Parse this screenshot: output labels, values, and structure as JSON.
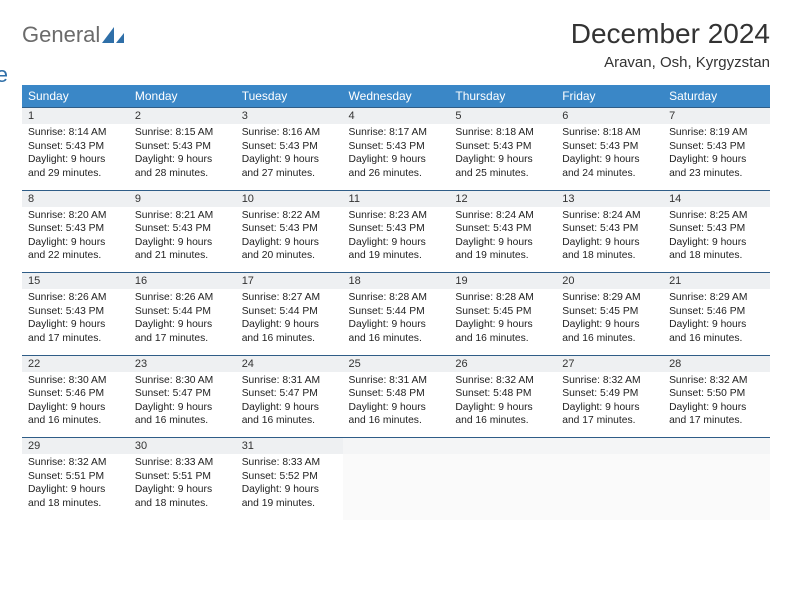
{
  "brand": {
    "part1": "General",
    "part2": "Blue"
  },
  "title": "December 2024",
  "location": "Aravan, Osh, Kyrgyzstan",
  "colors": {
    "header_bg": "#3a87c7",
    "header_text": "#ffffff",
    "daynum_bg": "#eef0f2",
    "rule": "#2f5d87",
    "brand_gray": "#6b6b6b",
    "brand_blue": "#2f6fa8"
  },
  "weekdays": [
    "Sunday",
    "Monday",
    "Tuesday",
    "Wednesday",
    "Thursday",
    "Friday",
    "Saturday"
  ],
  "weeks": [
    [
      {
        "n": "1",
        "sr": "8:14 AM",
        "ss": "5:43 PM",
        "dl": "9 hours and 29 minutes."
      },
      {
        "n": "2",
        "sr": "8:15 AM",
        "ss": "5:43 PM",
        "dl": "9 hours and 28 minutes."
      },
      {
        "n": "3",
        "sr": "8:16 AM",
        "ss": "5:43 PM",
        "dl": "9 hours and 27 minutes."
      },
      {
        "n": "4",
        "sr": "8:17 AM",
        "ss": "5:43 PM",
        "dl": "9 hours and 26 minutes."
      },
      {
        "n": "5",
        "sr": "8:18 AM",
        "ss": "5:43 PM",
        "dl": "9 hours and 25 minutes."
      },
      {
        "n": "6",
        "sr": "8:18 AM",
        "ss": "5:43 PM",
        "dl": "9 hours and 24 minutes."
      },
      {
        "n": "7",
        "sr": "8:19 AM",
        "ss": "5:43 PM",
        "dl": "9 hours and 23 minutes."
      }
    ],
    [
      {
        "n": "8",
        "sr": "8:20 AM",
        "ss": "5:43 PM",
        "dl": "9 hours and 22 minutes."
      },
      {
        "n": "9",
        "sr": "8:21 AM",
        "ss": "5:43 PM",
        "dl": "9 hours and 21 minutes."
      },
      {
        "n": "10",
        "sr": "8:22 AM",
        "ss": "5:43 PM",
        "dl": "9 hours and 20 minutes."
      },
      {
        "n": "11",
        "sr": "8:23 AM",
        "ss": "5:43 PM",
        "dl": "9 hours and 19 minutes."
      },
      {
        "n": "12",
        "sr": "8:24 AM",
        "ss": "5:43 PM",
        "dl": "9 hours and 19 minutes."
      },
      {
        "n": "13",
        "sr": "8:24 AM",
        "ss": "5:43 PM",
        "dl": "9 hours and 18 minutes."
      },
      {
        "n": "14",
        "sr": "8:25 AM",
        "ss": "5:43 PM",
        "dl": "9 hours and 18 minutes."
      }
    ],
    [
      {
        "n": "15",
        "sr": "8:26 AM",
        "ss": "5:43 PM",
        "dl": "9 hours and 17 minutes."
      },
      {
        "n": "16",
        "sr": "8:26 AM",
        "ss": "5:44 PM",
        "dl": "9 hours and 17 minutes."
      },
      {
        "n": "17",
        "sr": "8:27 AM",
        "ss": "5:44 PM",
        "dl": "9 hours and 16 minutes."
      },
      {
        "n": "18",
        "sr": "8:28 AM",
        "ss": "5:44 PM",
        "dl": "9 hours and 16 minutes."
      },
      {
        "n": "19",
        "sr": "8:28 AM",
        "ss": "5:45 PM",
        "dl": "9 hours and 16 minutes."
      },
      {
        "n": "20",
        "sr": "8:29 AM",
        "ss": "5:45 PM",
        "dl": "9 hours and 16 minutes."
      },
      {
        "n": "21",
        "sr": "8:29 AM",
        "ss": "5:46 PM",
        "dl": "9 hours and 16 minutes."
      }
    ],
    [
      {
        "n": "22",
        "sr": "8:30 AM",
        "ss": "5:46 PM",
        "dl": "9 hours and 16 minutes."
      },
      {
        "n": "23",
        "sr": "8:30 AM",
        "ss": "5:47 PM",
        "dl": "9 hours and 16 minutes."
      },
      {
        "n": "24",
        "sr": "8:31 AM",
        "ss": "5:47 PM",
        "dl": "9 hours and 16 minutes."
      },
      {
        "n": "25",
        "sr": "8:31 AM",
        "ss": "5:48 PM",
        "dl": "9 hours and 16 minutes."
      },
      {
        "n": "26",
        "sr": "8:32 AM",
        "ss": "5:48 PM",
        "dl": "9 hours and 16 minutes."
      },
      {
        "n": "27",
        "sr": "8:32 AM",
        "ss": "5:49 PM",
        "dl": "9 hours and 17 minutes."
      },
      {
        "n": "28",
        "sr": "8:32 AM",
        "ss": "5:50 PM",
        "dl": "9 hours and 17 minutes."
      }
    ],
    [
      {
        "n": "29",
        "sr": "8:32 AM",
        "ss": "5:51 PM",
        "dl": "9 hours and 18 minutes."
      },
      {
        "n": "30",
        "sr": "8:33 AM",
        "ss": "5:51 PM",
        "dl": "9 hours and 18 minutes."
      },
      {
        "n": "31",
        "sr": "8:33 AM",
        "ss": "5:52 PM",
        "dl": "9 hours and 19 minutes."
      },
      null,
      null,
      null,
      null
    ]
  ],
  "labels": {
    "sunrise": "Sunrise: ",
    "sunset": "Sunset: ",
    "daylight": "Daylight: "
  }
}
